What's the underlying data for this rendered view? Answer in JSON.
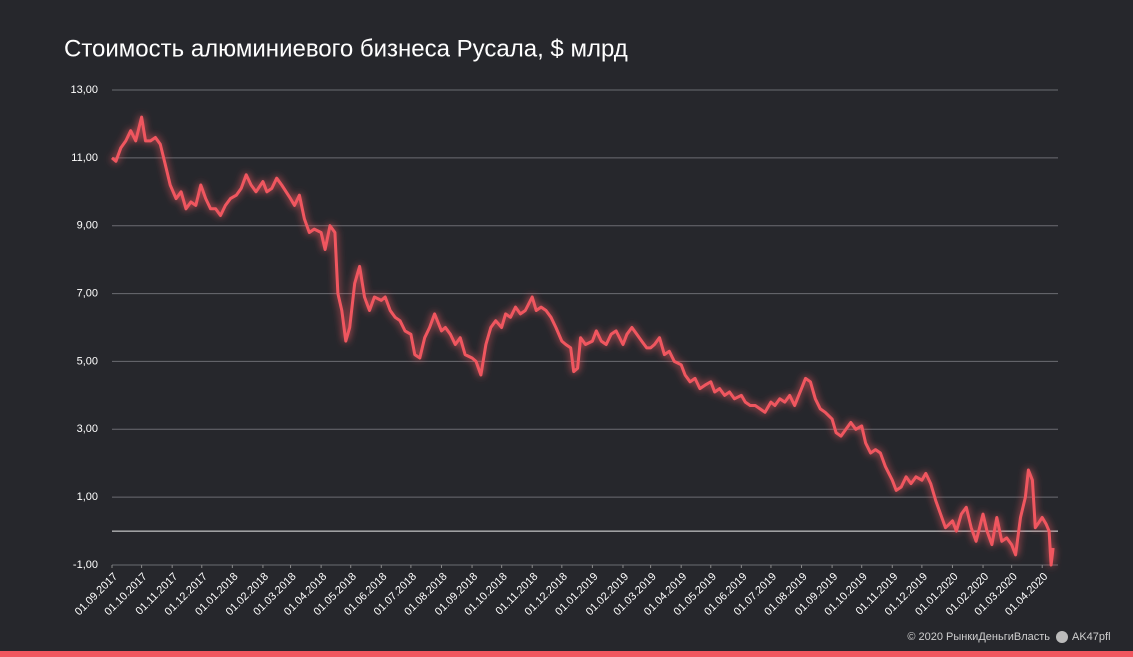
{
  "chart_data": {
    "type": "line",
    "title": "Стоимость алюминиевого бизнеса Русала, $ млрд",
    "color": "#f0575f",
    "grid": true,
    "x": [
      "01.09.2017",
      "05.09.2017",
      "10.09.2017",
      "15.09.2017",
      "20.09.2017",
      "25.09.2017",
      "01.10.2017",
      "05.10.2017",
      "10.10.2017",
      "15.10.2017",
      "20.10.2017",
      "25.10.2017",
      "30.10.2017",
      "05.11.2017",
      "10.11.2017",
      "15.11.2017",
      "20.11.2017",
      "25.11.2017",
      "30.11.2017",
      "05.12.2017",
      "10.12.2017",
      "15.12.2017",
      "20.12.2017",
      "25.12.2017",
      "30.12.2017",
      "05.01.2018",
      "10.01.2018",
      "15.01.2018",
      "20.01.2018",
      "25.01.2018",
      "01.02.2018",
      "05.02.2018",
      "10.02.2018",
      "15.02.2018",
      "20.02.2018",
      "01.03.2018",
      "05.03.2018",
      "10.03.2018",
      "15.03.2018",
      "20.03.2018",
      "25.03.2018",
      "01.04.2018",
      "05.04.2018",
      "10.04.2018",
      "15.04.2018",
      "18.04.2018",
      "22.04.2018",
      "26.04.2018",
      "30.04.2018",
      "05.05.2018",
      "10.05.2018",
      "15.05.2018",
      "20.05.2018",
      "25.05.2018",
      "01.06.2018",
      "05.06.2018",
      "10.06.2018",
      "15.06.2018",
      "20.06.2018",
      "25.06.2018",
      "01.07.2018",
      "05.07.2018",
      "10.07.2018",
      "15.07.2018",
      "20.07.2018",
      "25.07.2018",
      "01.08.2018",
      "05.08.2018",
      "10.08.2018",
      "15.08.2018",
      "20.08.2018",
      "25.08.2018",
      "01.09.2018",
      "05.09.2018",
      "10.09.2018",
      "15.09.2018",
      "20.09.2018",
      "25.09.2018",
      "01.10.2018",
      "05.10.2018",
      "10.10.2018",
      "15.10.2018",
      "20.10.2018",
      "25.10.2018",
      "01.11.2018",
      "05.11.2018",
      "10.11.2018",
      "15.11.2018",
      "20.11.2018",
      "25.11.2018",
      "01.12.2018",
      "05.12.2018",
      "10.12.2018",
      "13.12.2018",
      "17.12.2018",
      "20.12.2018",
      "25.12.2018",
      "01.01.2019",
      "05.01.2019",
      "10.01.2019",
      "15.01.2019",
      "20.01.2019",
      "25.01.2019",
      "01.02.2019",
      "05.02.2019",
      "10.02.2019",
      "15.02.2019",
      "20.02.2019",
      "25.02.2019",
      "01.03.2019",
      "05.03.2019",
      "10.03.2019",
      "15.03.2019",
      "20.03.2019",
      "25.03.2019",
      "01.04.2019",
      "05.04.2019",
      "10.04.2019",
      "15.04.2019",
      "20.04.2019",
      "25.04.2019",
      "01.05.2019",
      "05.05.2019",
      "10.05.2019",
      "15.05.2019",
      "20.05.2019",
      "25.05.2019",
      "01.06.2019",
      "05.06.2019",
      "10.06.2019",
      "15.06.2019",
      "20.06.2019",
      "25.06.2019",
      "01.07.2019",
      "05.07.2019",
      "10.07.2019",
      "15.07.2019",
      "20.07.2019",
      "25.07.2019",
      "01.08.2019",
      "05.08.2019",
      "10.08.2019",
      "15.08.2019",
      "20.08.2019",
      "25.08.2019",
      "01.09.2019",
      "05.09.2019",
      "10.09.2019",
      "15.09.2019",
      "20.09.2019",
      "25.09.2019",
      "01.10.2019",
      "05.10.2019",
      "10.10.2019",
      "15.10.2019",
      "20.10.2019",
      "25.10.2019",
      "01.11.2019",
      "05.11.2019",
      "10.11.2019",
      "15.11.2019",
      "20.11.2019",
      "25.11.2019",
      "01.12.2019",
      "05.12.2019",
      "10.12.2019",
      "15.12.2019",
      "20.12.2019",
      "25.12.2019",
      "01.01.2020",
      "05.01.2020",
      "10.01.2020",
      "15.01.2020",
      "20.01.2020",
      "25.01.2020",
      "01.02.2020",
      "05.02.2020",
      "10.02.2020",
      "15.02.2020",
      "20.02.2020",
      "25.02.2020",
      "01.03.2020",
      "05.03.2020",
      "10.03.2020",
      "15.03.2020",
      "18.03.2020",
      "22.03.2020",
      "25.03.2020",
      "01.04.2020",
      "05.04.2020",
      "08.04.2020",
      "10.04.2020",
      "12.04.2020"
    ],
    "values": [
      11.0,
      10.9,
      11.3,
      11.5,
      11.8,
      11.5,
      12.2,
      11.5,
      11.5,
      11.6,
      11.4,
      10.8,
      10.2,
      9.8,
      10.0,
      9.5,
      9.7,
      9.6,
      10.2,
      9.8,
      9.5,
      9.5,
      9.3,
      9.6,
      9.8,
      9.9,
      10.1,
      10.5,
      10.2,
      10.0,
      10.3,
      10.0,
      10.1,
      10.4,
      10.2,
      9.8,
      9.6,
      9.9,
      9.2,
      8.8,
      8.9,
      8.8,
      8.3,
      9.0,
      8.8,
      7.0,
      6.5,
      5.6,
      6.0,
      7.3,
      7.8,
      6.9,
      6.5,
      6.9,
      6.8,
      6.9,
      6.5,
      6.3,
      6.2,
      5.9,
      5.8,
      5.2,
      5.1,
      5.7,
      6.0,
      6.4,
      5.9,
      6.0,
      5.8,
      5.5,
      5.7,
      5.2,
      5.1,
      5.0,
      4.6,
      5.5,
      6.0,
      6.2,
      6.0,
      6.4,
      6.3,
      6.6,
      6.4,
      6.5,
      6.9,
      6.5,
      6.6,
      6.5,
      6.3,
      6.0,
      5.6,
      5.5,
      5.4,
      4.7,
      4.8,
      5.7,
      5.5,
      5.6,
      5.9,
      5.6,
      5.5,
      5.8,
      5.9,
      5.5,
      5.8,
      6.0,
      5.8,
      5.6,
      5.4,
      5.4,
      5.5,
      5.7,
      5.2,
      5.3,
      5.0,
      4.9,
      4.6,
      4.4,
      4.5,
      4.2,
      4.3,
      4.4,
      4.1,
      4.2,
      4.0,
      4.1,
      3.9,
      4.0,
      3.8,
      3.7,
      3.7,
      3.6,
      3.5,
      3.8,
      3.7,
      3.9,
      3.8,
      4.0,
      3.7,
      4.2,
      4.5,
      4.4,
      3.9,
      3.6,
      3.5,
      3.3,
      2.9,
      2.8,
      3.0,
      3.2,
      3.0,
      3.1,
      2.6,
      2.3,
      2.4,
      2.3,
      1.9,
      1.5,
      1.2,
      1.3,
      1.6,
      1.4,
      1.6,
      1.5,
      1.7,
      1.4,
      0.9,
      0.5,
      0.1,
      0.3,
      0.0,
      0.5,
      0.7,
      0.1,
      -0.3,
      0.5,
      0.0,
      -0.4,
      0.4,
      -0.3,
      -0.2,
      -0.4,
      -0.7,
      0.4,
      1.0,
      1.8,
      1.5,
      0.1,
      0.4,
      0.2,
      0.0,
      -1.0,
      -0.5
    ],
    "xlim": [
      "01.09.2017",
      "17.04.2020"
    ],
    "xticks": [
      "01.09.2017",
      "01.10.2017",
      "01.11.2017",
      "01.12.2017",
      "01.01.2018",
      "01.02.2018",
      "01.03.2018",
      "01.04.2018",
      "01.05.2018",
      "01.06.2018",
      "01.07.2018",
      "01.08.2018",
      "01.09.2018",
      "01.10.2018",
      "01.11.2018",
      "01.12.2018",
      "01.01.2019",
      "01.02.2019",
      "01.03.2019",
      "01.04.2019",
      "01.05.2019",
      "01.06.2019",
      "01.07.2019",
      "01.08.2019",
      "01.09.2019",
      "01.10.2019",
      "01.11.2019",
      "01.12.2019",
      "01.01.2020",
      "01.02.2020",
      "01.03.2020",
      "01.04.2020"
    ],
    "ylim": [
      -1,
      13
    ],
    "yticks": [
      {
        "value": -1,
        "label": "-1,00"
      },
      {
        "value": 1,
        "label": "1,00"
      },
      {
        "value": 3,
        "label": "3,00"
      },
      {
        "value": 5,
        "label": "5,00"
      },
      {
        "value": 7,
        "label": "7,00"
      },
      {
        "value": 9,
        "label": "9,00"
      },
      {
        "value": 11,
        "label": "11,00"
      },
      {
        "value": 13,
        "label": "13,00"
      }
    ]
  },
  "footer": {
    "copyright": "© 2020  РынкиДеньгиВласть",
    "handle": "AK47pfl"
  }
}
